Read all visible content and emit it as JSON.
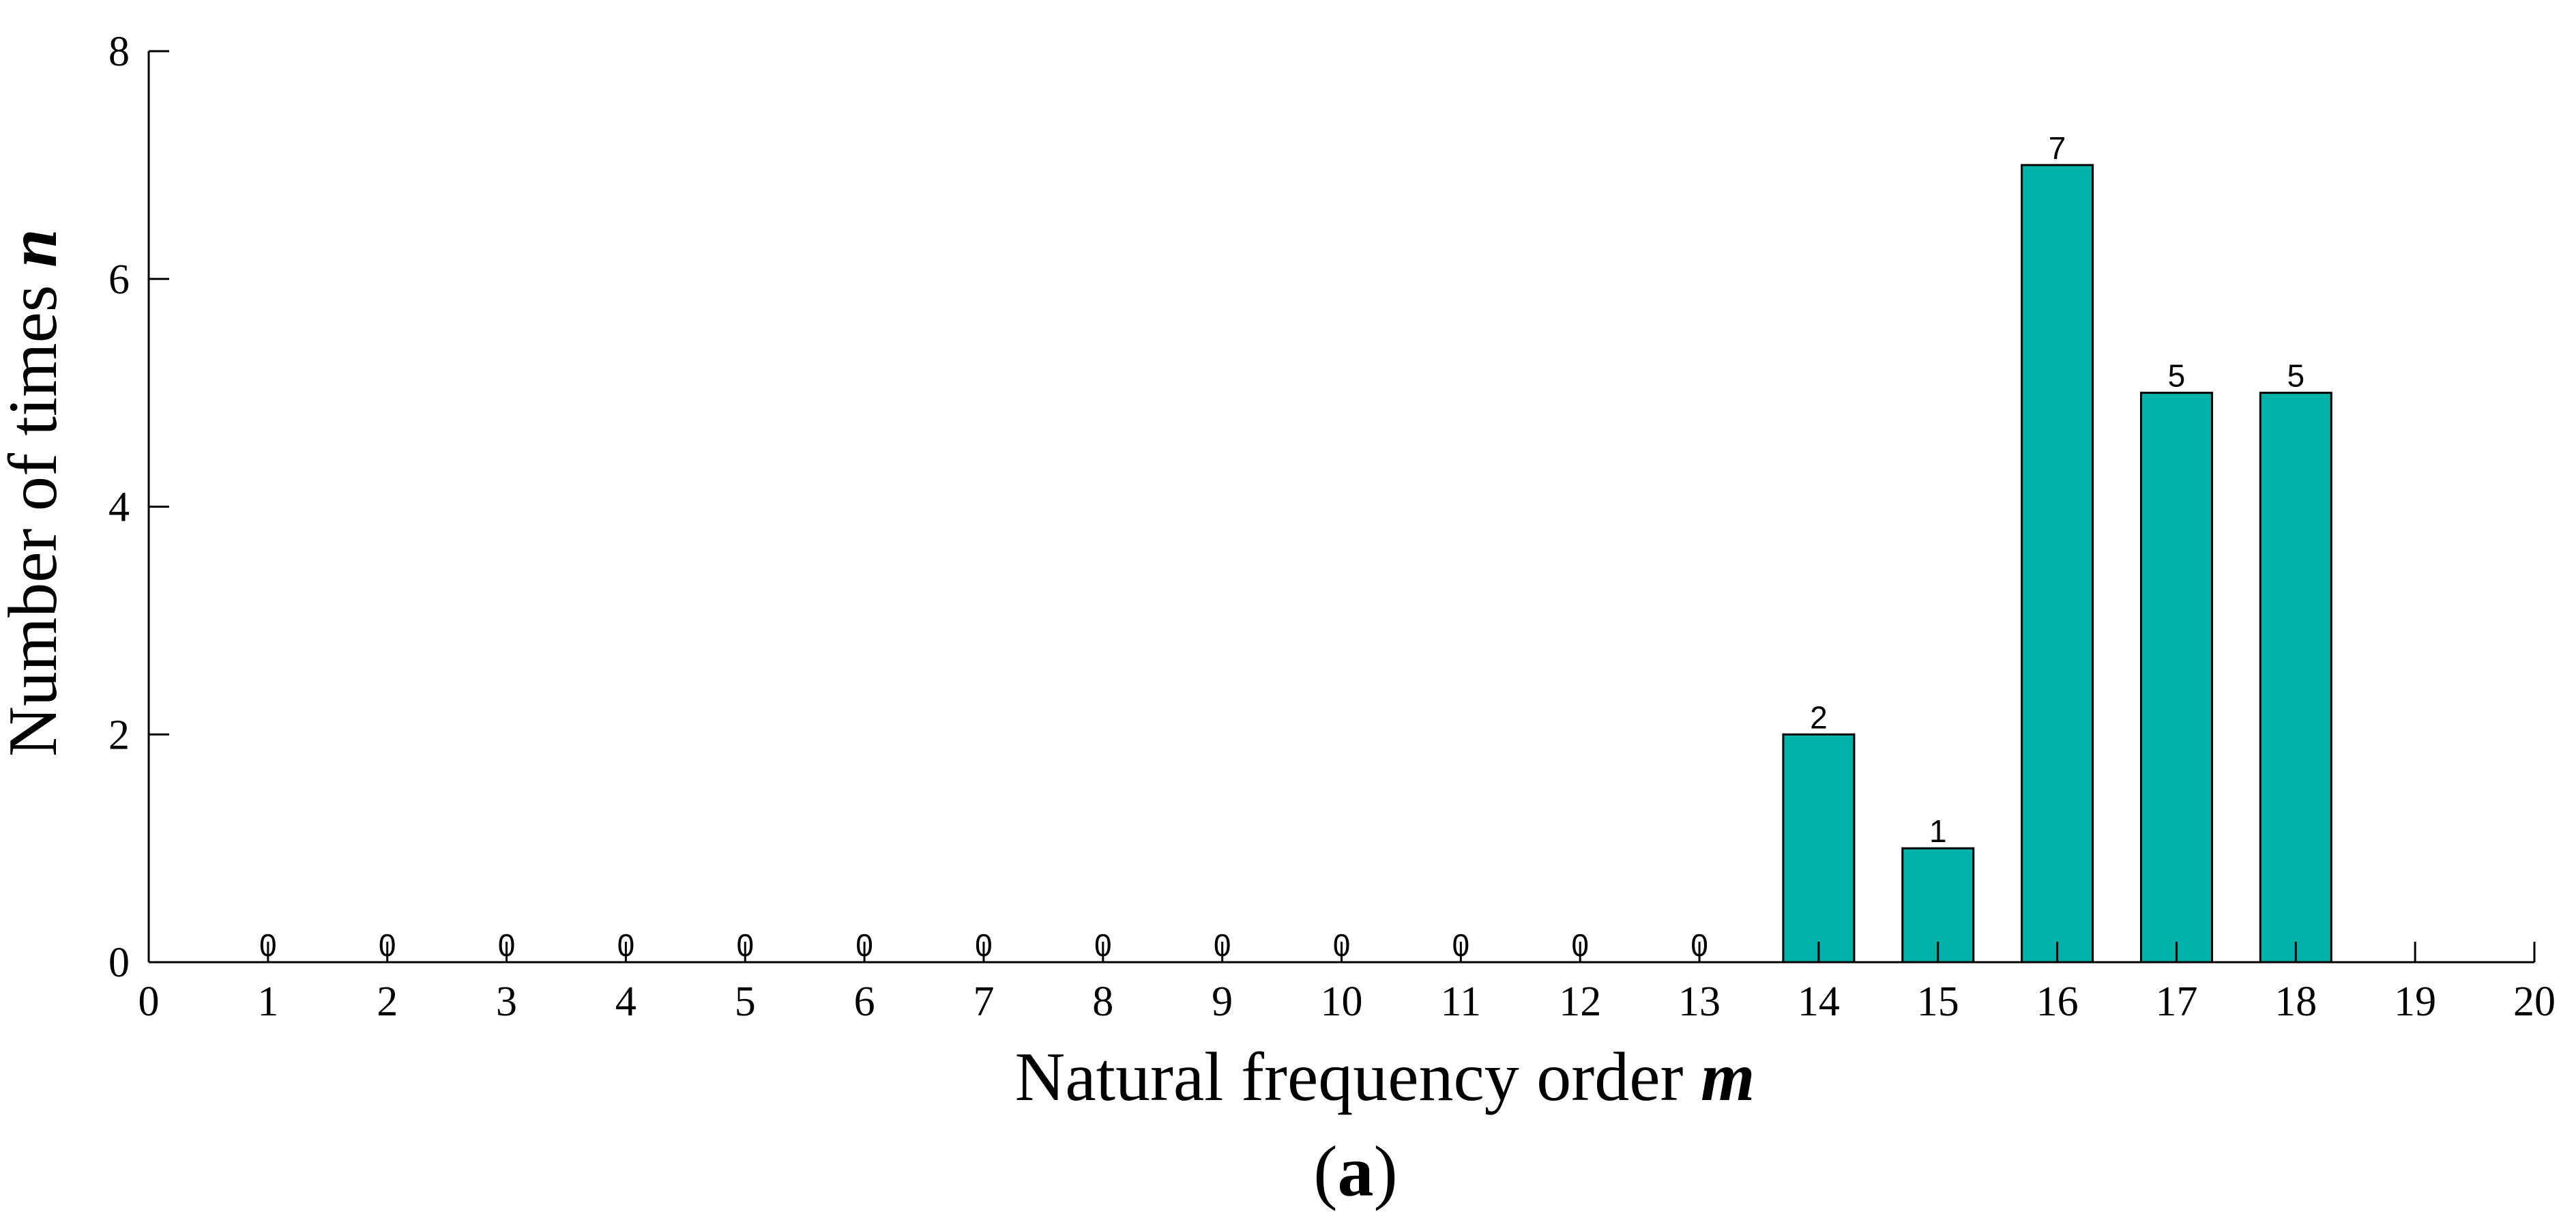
{
  "chart_data": {
    "type": "bar",
    "xlabel": "Natural frequency order ",
    "xlabel_var": "m",
    "ylabel": "Number of times ",
    "ylabel_var": "n",
    "caption_letter": "a",
    "caption_open": "(",
    "caption_close": ")",
    "xlim": [
      0,
      20
    ],
    "ylim": [
      0,
      8
    ],
    "x_ticks": [
      0,
      1,
      2,
      3,
      4,
      5,
      6,
      7,
      8,
      9,
      10,
      11,
      12,
      13,
      14,
      15,
      16,
      17,
      18,
      19,
      20
    ],
    "y_ticks": [
      0,
      2,
      4,
      6,
      8
    ],
    "categories": [
      1,
      2,
      3,
      4,
      5,
      6,
      7,
      8,
      9,
      10,
      11,
      12,
      13,
      14,
      15,
      16,
      17,
      18
    ],
    "values": [
      0,
      0,
      0,
      0,
      0,
      0,
      0,
      0,
      0,
      0,
      0,
      0,
      0,
      2,
      1,
      7,
      5,
      5
    ],
    "data_labels": [
      "0",
      "0",
      "0",
      "0",
      "0",
      "0",
      "0",
      "0",
      "0",
      "0",
      "0",
      "0",
      "0",
      "2",
      "1",
      "7",
      "5",
      "5"
    ],
    "bar_color": "#00b2a9",
    "grid": false,
    "legend": "none"
  }
}
